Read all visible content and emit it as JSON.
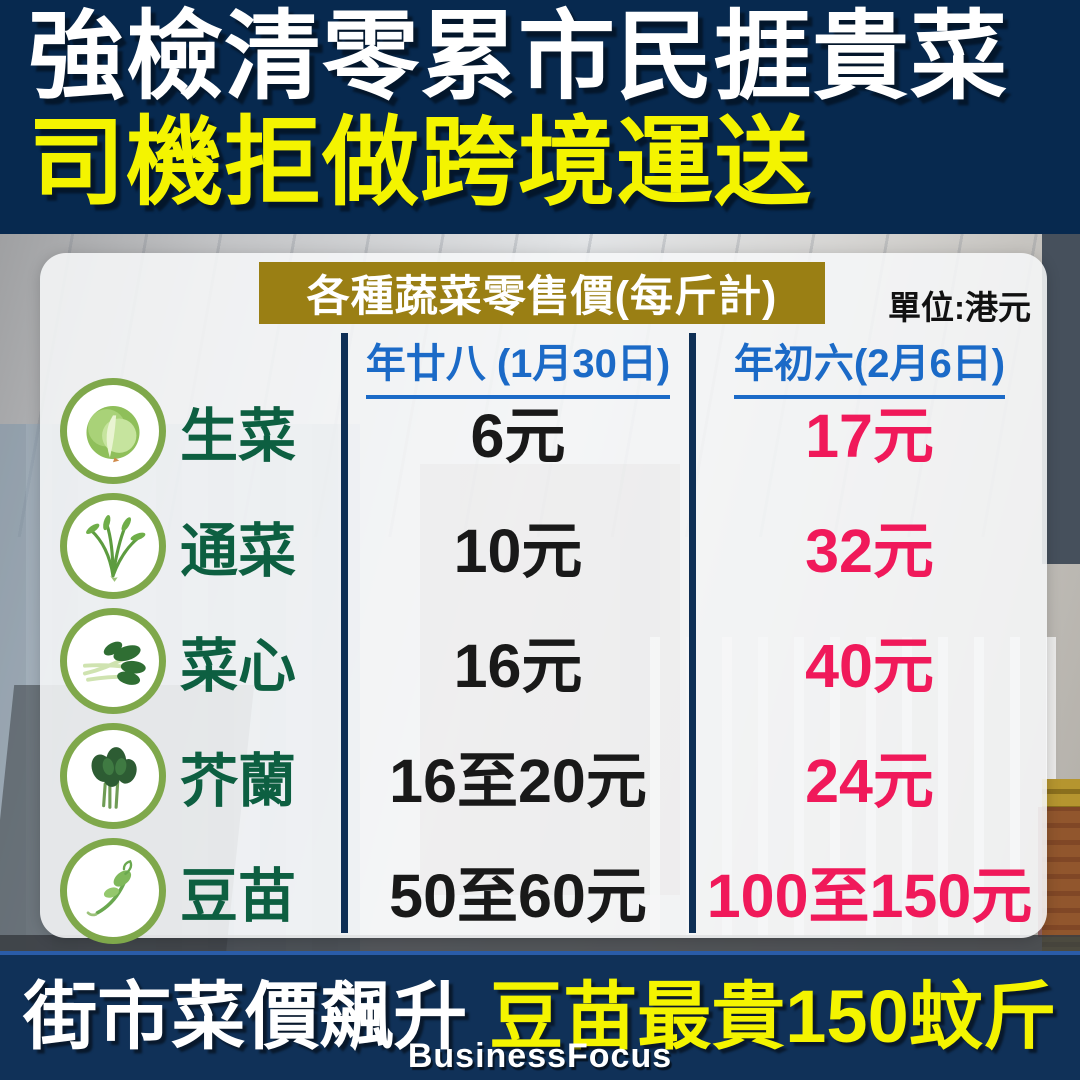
{
  "header": {
    "line1": "強檢清零累市民捱貴菜",
    "line2": "司機拒做跨境運送"
  },
  "table": {
    "title": "各種蔬菜零售價(每斤計)",
    "unit_label": "單位:港元",
    "columns": [
      "年廿八 (1月30日)",
      "年初六(2月6日)"
    ],
    "rows": [
      {
        "icon": "lettuce-icon",
        "name": "生菜",
        "price_before": "6元",
        "price_after": "17元"
      },
      {
        "icon": "water-spinach-icon",
        "name": "通菜",
        "price_before": "10元",
        "price_after": "32元"
      },
      {
        "icon": "choy-sum-icon",
        "name": "菜心",
        "price_before": "16元",
        "price_after": "40元"
      },
      {
        "icon": "kai-lan-icon",
        "name": "芥蘭",
        "price_before": "16至20元",
        "price_after": "24元"
      },
      {
        "icon": "pea-shoots-icon",
        "name": "豆苗",
        "price_before": "50至60元",
        "price_after": "100至150元"
      }
    ]
  },
  "footer": {
    "headline_white": "街市菜價飆升",
    "headline_yellow": "豆苗最貴150蚊斤",
    "brand": "BusinessFocus"
  },
  "colors": {
    "navy": "#07294f",
    "footer_navy": "#103158",
    "yellow": "#f4f400",
    "pink": "#f0195a",
    "blue_header": "#1b6ac7",
    "gold_badge": "#9a7f14",
    "green_name": "#0d5f41",
    "green_ring": "#7fa84b"
  },
  "chart_data": {
    "type": "table",
    "title": "各種蔬菜零售價(每斤計)",
    "unit": "港元",
    "categories": [
      "生菜",
      "通菜",
      "菜心",
      "芥蘭",
      "豆苗"
    ],
    "series": [
      {
        "name": "年廿八 (1月30日)",
        "values": [
          "6",
          "10",
          "16",
          "16至20",
          "50至60"
        ]
      },
      {
        "name": "年初六(2月6日)",
        "values": [
          "17",
          "32",
          "40",
          "24",
          "100至150"
        ]
      }
    ]
  }
}
